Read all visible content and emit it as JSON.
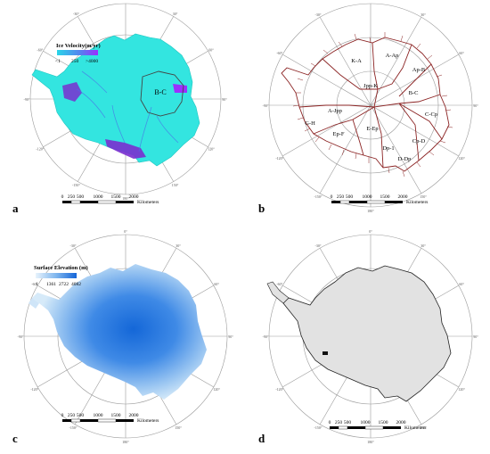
{
  "panels": {
    "a": {
      "letter": "a",
      "legend_title": "Ice Velocity(m/yr)",
      "legend_ticks": [
        "<1",
        "250",
        ">4000"
      ],
      "region_label": "B-C",
      "scale_ticks": [
        "0",
        "250",
        "500",
        "1000",
        "1500",
        "2000"
      ],
      "scale_unit": "Kilometers",
      "colors": {
        "ice_fast": "#7a2ecf",
        "ice_slow": "#2ee6e6",
        "land": "#33e5e0",
        "legend_low": "#28d6e8",
        "legend_high": "#9b30ff"
      }
    },
    "b": {
      "letter": "b",
      "basin_labels": [
        "A-Ap",
        "K-A",
        "Jpp-K",
        "Ap-B",
        "B-C",
        "A-Jpp",
        "C-Cp",
        "G-H",
        "Ep-F",
        "E-Ep",
        "Cp-D",
        "Dp-1",
        "D-Dp"
      ],
      "scale_ticks": [
        "0",
        "250",
        "500",
        "1000",
        "1500",
        "2000"
      ],
      "scale_unit": "Kilometers",
      "colors": {
        "basin_line": "#8b2323"
      }
    },
    "c": {
      "letter": "c",
      "legend_title": "Surface Elevation (m)",
      "legend_ticks": [
        "1",
        "1361",
        "2722",
        "4082"
      ],
      "scale_ticks": [
        "0",
        "250",
        "500",
        "1000",
        "1500",
        "2000"
      ],
      "scale_unit": "Kilometers",
      "colors": {
        "elev_high": "#1565d8",
        "elev_low": "#c9e3f7"
      }
    },
    "d": {
      "letter": "d",
      "scale_ticks": [
        "0",
        "250",
        "500",
        "1000",
        "1500",
        "2000"
      ],
      "scale_unit": "Kilometers",
      "colors": {
        "land": "#e2e2e2",
        "outline": "#222222"
      }
    }
  },
  "graticule": {
    "longitude_labels": [
      "0°",
      "30°",
      "60°",
      "90°",
      "120°",
      "150°",
      "180°",
      "-150°",
      "-120°",
      "-90°",
      "-60°",
      "-30°"
    ]
  }
}
